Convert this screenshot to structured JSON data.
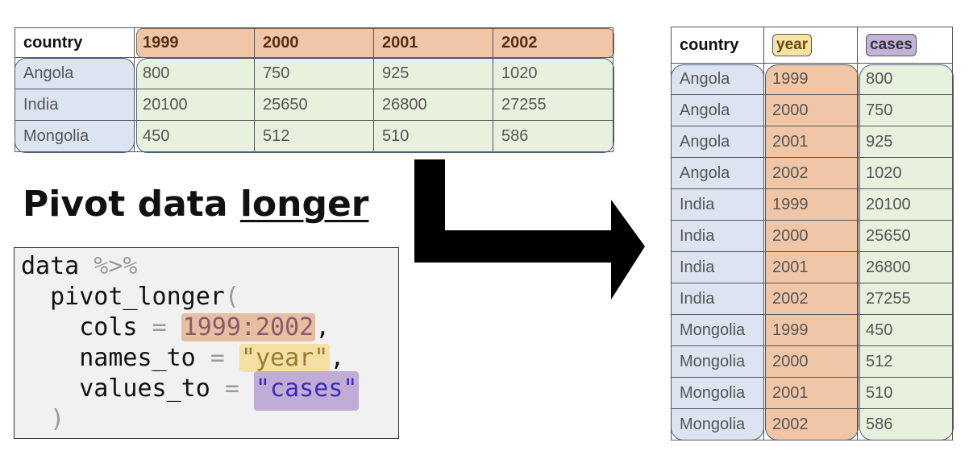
{
  "wide_table": {
    "headers": [
      "country",
      "1999",
      "2000",
      "2001",
      "2002"
    ],
    "rows": [
      [
        "Angola",
        "800",
        "750",
        "925",
        "1020"
      ],
      [
        "India",
        "20100",
        "25650",
        "26800",
        "27255"
      ],
      [
        "Mongolia",
        "450",
        "512",
        "510",
        "586"
      ]
    ]
  },
  "title": {
    "main": "Pivot data ",
    "emphasis": "longer"
  },
  "code": {
    "line1_fn": "data ",
    "line1_op": "%>%",
    "line2_fn": "  pivot_longer",
    "line2_paren": "(",
    "line3_arg": "    cols ",
    "line3_eq": "=",
    "line3_val": "1999:2002",
    "line3_comma": ",",
    "line4_arg": "    names_to ",
    "line4_eq": "=",
    "line4_val": "\"year\"",
    "line4_comma": ",",
    "line5_arg": "    values_to ",
    "line5_eq": "=",
    "line5_val": "\"cases\"",
    "line6_paren": "  )"
  },
  "long_table": {
    "headers": [
      "country",
      "year",
      "cases"
    ],
    "rows": [
      [
        "Angola",
        "1999",
        "800"
      ],
      [
        "Angola",
        "2000",
        "750"
      ],
      [
        "Angola",
        "2001",
        "925"
      ],
      [
        "Angola",
        "2002",
        "1020"
      ],
      [
        "India",
        "1999",
        "20100"
      ],
      [
        "India",
        "2000",
        "25650"
      ],
      [
        "India",
        "2001",
        "26800"
      ],
      [
        "India",
        "2002",
        "27255"
      ],
      [
        "Mongolia",
        "1999",
        "450"
      ],
      [
        "Mongolia",
        "2000",
        "512"
      ],
      [
        "Mongolia",
        "2001",
        "510"
      ],
      [
        "Mongolia",
        "2002",
        "586"
      ]
    ]
  },
  "colors": {
    "country_highlight": "#dce3f1",
    "value_highlight": "#e8f0de",
    "year_highlight": "#f0c6a6",
    "names_to_highlight": "#f5dfa2",
    "values_to_highlight": "#c1acd6",
    "arrow": "#000000"
  },
  "icons": {
    "arrow": "elbow-arrow-right-icon"
  }
}
